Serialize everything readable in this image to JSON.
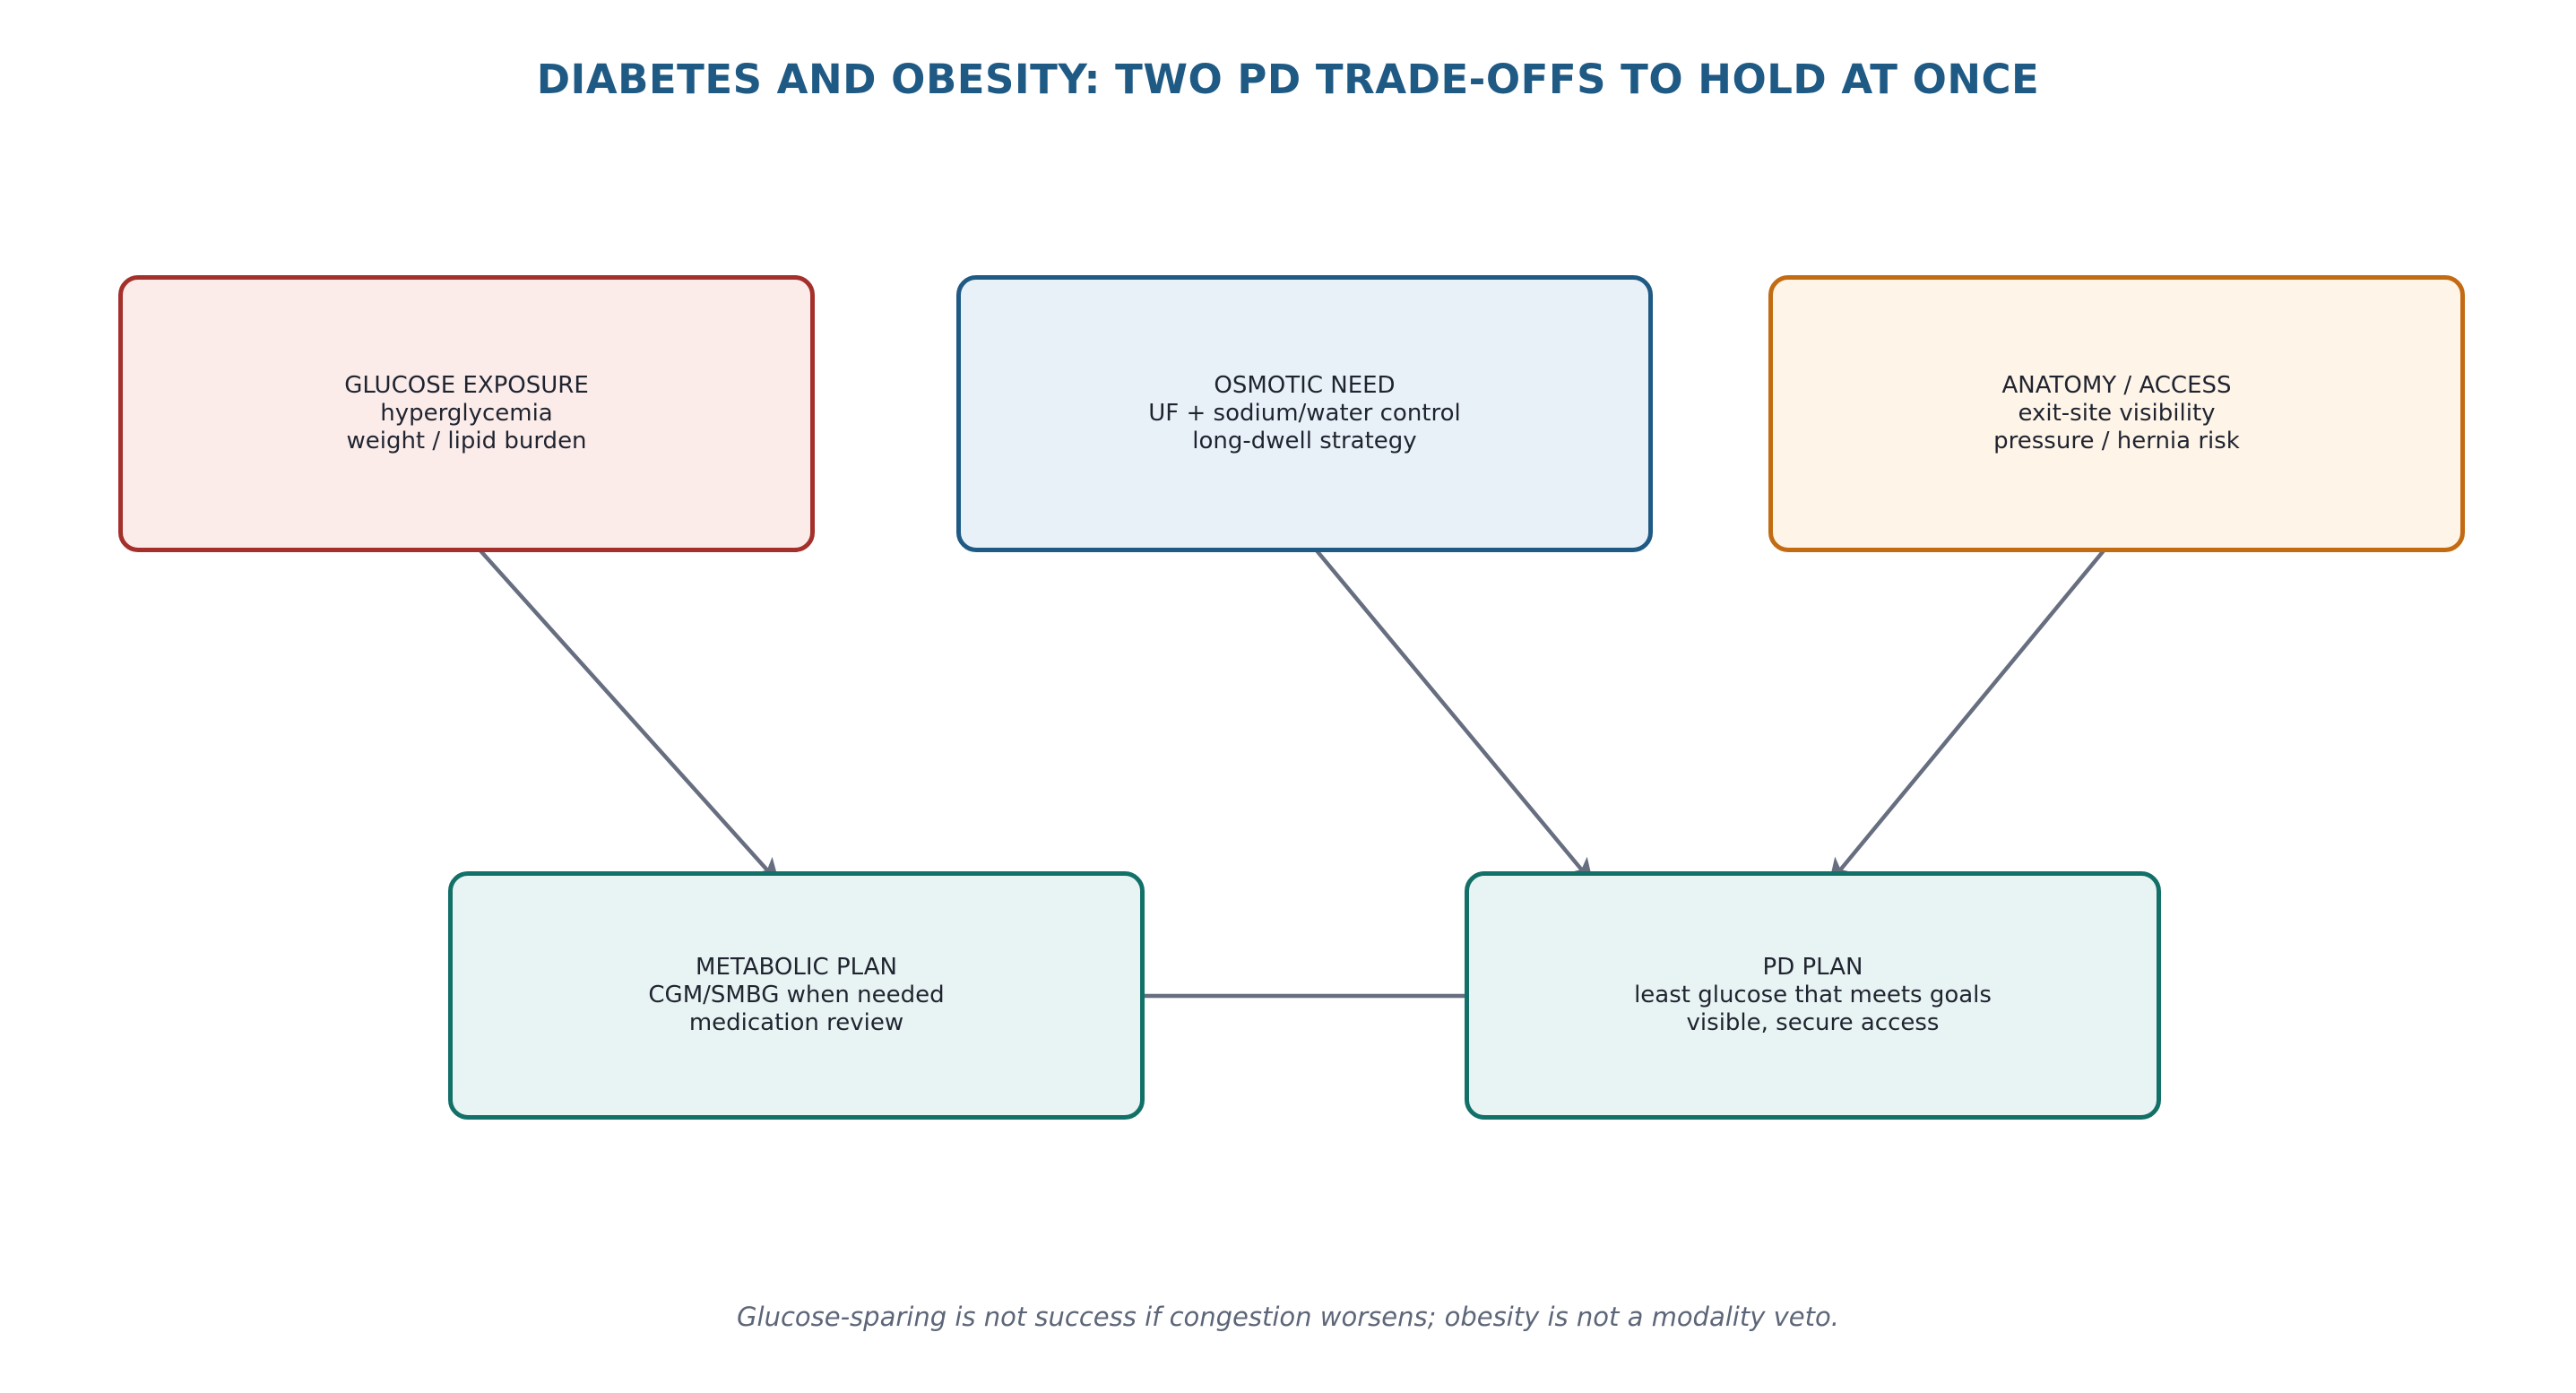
{
  "title": "DIABETES AND OBESITY: TWO PD TRADE-OFFS TO HOLD AT ONCE",
  "colors": {
    "title": "#1f5a85",
    "arrow": "#666e80",
    "footnote": "#5d6678"
  },
  "nodes": {
    "glucose": {
      "heading": "GLUCOSE EXPOSURE",
      "line1": "hyperglycemia",
      "line2": "weight / lipid burden",
      "border": "#a3302b",
      "fill": "#fbecea"
    },
    "osmotic": {
      "heading": "OSMOTIC NEED",
      "line1": "UF + sodium/water control",
      "line2": "long-dwell strategy",
      "border": "#1f5a85",
      "fill": "#e9f1f8"
    },
    "anatomy": {
      "heading": "ANATOMY / ACCESS",
      "line1": "exit-site visibility",
      "line2": "pressure / hernia risk",
      "border": "#c26b12",
      "fill": "#fef4e7"
    },
    "metabolic": {
      "heading": "METABOLIC PLAN",
      "line1": "CGM/SMBG when needed",
      "line2": "medication review",
      "border": "#127068",
      "fill": "#e8f3f3"
    },
    "pdplan": {
      "heading": "PD PLAN",
      "line1": "least glucose that meets goals",
      "line2": "visible, secure access",
      "border": "#127068",
      "fill": "#e8f3f3"
    }
  },
  "edges": [
    {
      "from": "GLUCOSE EXPOSURE",
      "to": "METABOLIC PLAN"
    },
    {
      "from": "OSMOTIC NEED",
      "to": "PD PLAN"
    },
    {
      "from": "ANATOMY / ACCESS",
      "to": "PD PLAN"
    },
    {
      "from": "METABOLIC PLAN",
      "to": "PD PLAN"
    }
  ],
  "footnote": "Glucose-sparing is not success if congestion worsens; obesity is not a modality veto."
}
